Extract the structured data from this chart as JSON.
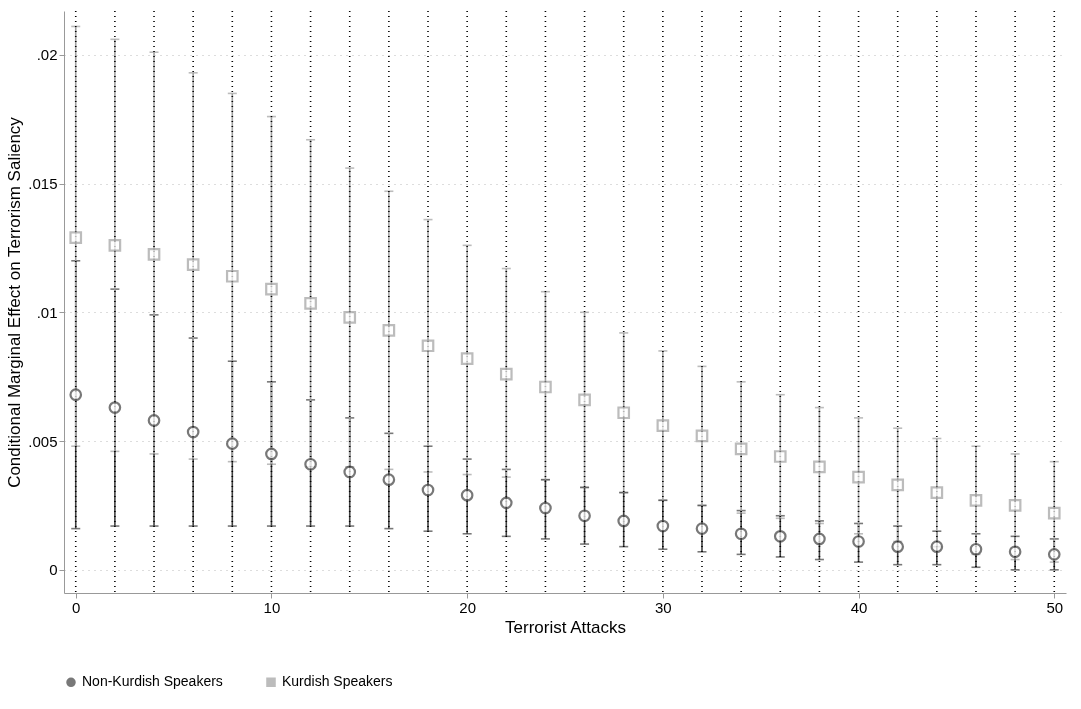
{
  "chart_data": {
    "type": "scatter",
    "xlabel": "Terrorist Attacks",
    "ylabel": "Conditional Marginal Effect on Terrorism Saliency",
    "x": [
      0,
      2,
      4,
      6,
      8,
      10,
      12,
      14,
      16,
      18,
      20,
      22,
      24,
      26,
      28,
      30,
      32,
      34,
      36,
      38,
      40,
      42,
      44,
      46,
      48,
      50
    ],
    "series": [
      {
        "name": "Non-Kurdish Speakers",
        "color": "#404040",
        "marker": "circle",
        "values": [
          0.0068,
          0.0063,
          0.0058,
          0.00535,
          0.0049,
          0.0045,
          0.0041,
          0.0038,
          0.0035,
          0.0031,
          0.0029,
          0.0026,
          0.0024,
          0.0021,
          0.0019,
          0.0017,
          0.0016,
          0.0014,
          0.0013,
          0.0012,
          0.0011,
          0.0009,
          0.0009,
          0.0008,
          0.0007,
          0.0006
        ],
        "errors": [
          [
            0.0016,
            0.012
          ],
          [
            0.0017,
            0.0109
          ],
          [
            0.0017,
            0.0099
          ],
          [
            0.0017,
            0.009
          ],
          [
            0.0017,
            0.0081
          ],
          [
            0.0017,
            0.0073
          ],
          [
            0.0017,
            0.0066
          ],
          [
            0.0017,
            0.0059
          ],
          [
            0.0016,
            0.0053
          ],
          [
            0.0015,
            0.0048
          ],
          [
            0.0014,
            0.0043
          ],
          [
            0.0013,
            0.0039
          ],
          [
            0.0012,
            0.0035
          ],
          [
            0.001,
            0.0032
          ],
          [
            0.0009,
            0.003
          ],
          [
            0.0008,
            0.0027
          ],
          [
            0.0007,
            0.0025
          ],
          [
            0.0006,
            0.0023
          ],
          [
            0.0005,
            0.0021
          ],
          [
            0.0004,
            0.0019
          ],
          [
            0.0003,
            0.0018
          ],
          [
            0.0002,
            0.0017
          ],
          [
            0.0002,
            0.0015
          ],
          [
            0.0001,
            0.0014
          ],
          [
            0.0,
            0.0013
          ],
          [
            0.0,
            0.0012
          ]
        ]
      },
      {
        "name": "Kurdish Speakers",
        "color": "#a0a0a0",
        "marker": "square",
        "values": [
          0.0129,
          0.0126,
          0.01225,
          0.01185,
          0.0114,
          0.0109,
          0.01035,
          0.0098,
          0.0093,
          0.0087,
          0.0082,
          0.0076,
          0.0071,
          0.0066,
          0.0061,
          0.0056,
          0.0052,
          0.0047,
          0.0044,
          0.004,
          0.0036,
          0.0033,
          0.003,
          0.0027,
          0.0025,
          0.0022
        ],
        "errors": [
          [
            0.0048,
            0.0211
          ],
          [
            0.0046,
            0.0206
          ],
          [
            0.0045,
            0.0201
          ],
          [
            0.0043,
            0.0193
          ],
          [
            0.0042,
            0.0185
          ],
          [
            0.0041,
            0.0176
          ],
          [
            0.004,
            0.0167
          ],
          [
            0.004,
            0.0156
          ],
          [
            0.0039,
            0.0147
          ],
          [
            0.0038,
            0.0136
          ],
          [
            0.0037,
            0.0126
          ],
          [
            0.0036,
            0.0117
          ],
          [
            0.0035,
            0.0108
          ],
          [
            0.0032,
            0.01
          ],
          [
            0.003,
            0.0092
          ],
          [
            0.0027,
            0.0085
          ],
          [
            0.0025,
            0.0079
          ],
          [
            0.0022,
            0.0073
          ],
          [
            0.002,
            0.0068
          ],
          [
            0.0018,
            0.0063
          ],
          [
            0.0014,
            0.0059
          ],
          [
            0.0011,
            0.0055
          ],
          [
            0.0009,
            0.0051
          ],
          [
            0.0006,
            0.0048
          ],
          [
            0.0004,
            0.0045
          ],
          [
            0.0003,
            0.0042
          ]
        ]
      }
    ],
    "xlim": [
      -0.6,
      50.6
    ],
    "xticks": [
      0,
      10,
      20,
      30,
      40,
      50
    ],
    "ylim": [
      -0.0009,
      0.0217
    ],
    "yticks": [
      {
        "value": 0,
        "label": "0"
      },
      {
        "value": 0.005,
        "label": ".005"
      },
      {
        "value": 0.01,
        "label": ".01"
      },
      {
        "value": 0.015,
        "label": ".015"
      },
      {
        "value": 0.02,
        "label": ".02"
      }
    ],
    "ref_lines": [
      {
        "axis": "x",
        "value": 0,
        "color": "#000000",
        "line_style": "dotted"
      },
      {
        "axis": "x",
        "value": 2,
        "color": "#000000",
        "line_style": "dotted"
      },
      {
        "axis": "x",
        "value": 4,
        "color": "#000000",
        "line_style": "dotted"
      },
      {
        "axis": "x",
        "value": 6,
        "color": "#000000",
        "line_style": "dotted"
      },
      {
        "axis": "x",
        "value": 8,
        "color": "#000000",
        "line_style": "dotted"
      },
      {
        "axis": "x",
        "value": 10,
        "color": "#000000",
        "line_style": "dotted"
      },
      {
        "axis": "x",
        "value": 12,
        "color": "#000000",
        "line_style": "dotted"
      },
      {
        "axis": "x",
        "value": 14,
        "color": "#000000",
        "line_style": "dotted"
      },
      {
        "axis": "x",
        "value": 16,
        "color": "#000000",
        "line_style": "dotted"
      },
      {
        "axis": "x",
        "value": 18,
        "color": "#000000",
        "line_style": "dotted"
      },
      {
        "axis": "x",
        "value": 20,
        "color": "#000000",
        "line_style": "dotted"
      },
      {
        "axis": "x",
        "value": 22,
        "color": "#000000",
        "line_style": "dotted"
      },
      {
        "axis": "x",
        "value": 24,
        "color": "#000000",
        "line_style": "dotted"
      },
      {
        "axis": "x",
        "value": 26,
        "color": "#000000",
        "line_style": "dotted"
      },
      {
        "axis": "x",
        "value": 28,
        "color": "#000000",
        "line_style": "dotted"
      },
      {
        "axis": "x",
        "value": 30,
        "color": "#000000",
        "line_style": "dotted"
      },
      {
        "axis": "x",
        "value": 32,
        "color": "#000000",
        "line_style": "dotted"
      },
      {
        "axis": "x",
        "value": 34,
        "color": "#000000",
        "line_style": "dotted"
      },
      {
        "axis": "x",
        "value": 36,
        "color": "#000000",
        "line_style": "dotted"
      },
      {
        "axis": "x",
        "value": 38,
        "color": "#000000",
        "line_style": "dotted"
      },
      {
        "axis": "x",
        "value": 40,
        "color": "#000000",
        "line_style": "dotted"
      },
      {
        "axis": "x",
        "value": 42,
        "color": "#000000",
        "line_style": "dotted"
      },
      {
        "axis": "x",
        "value": 44,
        "color": "#000000",
        "line_style": "dotted"
      },
      {
        "axis": "x",
        "value": 46,
        "color": "#000000",
        "line_style": "dotted"
      },
      {
        "axis": "x",
        "value": 48,
        "color": "#000000",
        "line_style": "dotted"
      },
      {
        "axis": "x",
        "value": 50,
        "color": "#000000",
        "line_style": "dotted"
      }
    ],
    "grid": "y",
    "legend": "bottom"
  }
}
